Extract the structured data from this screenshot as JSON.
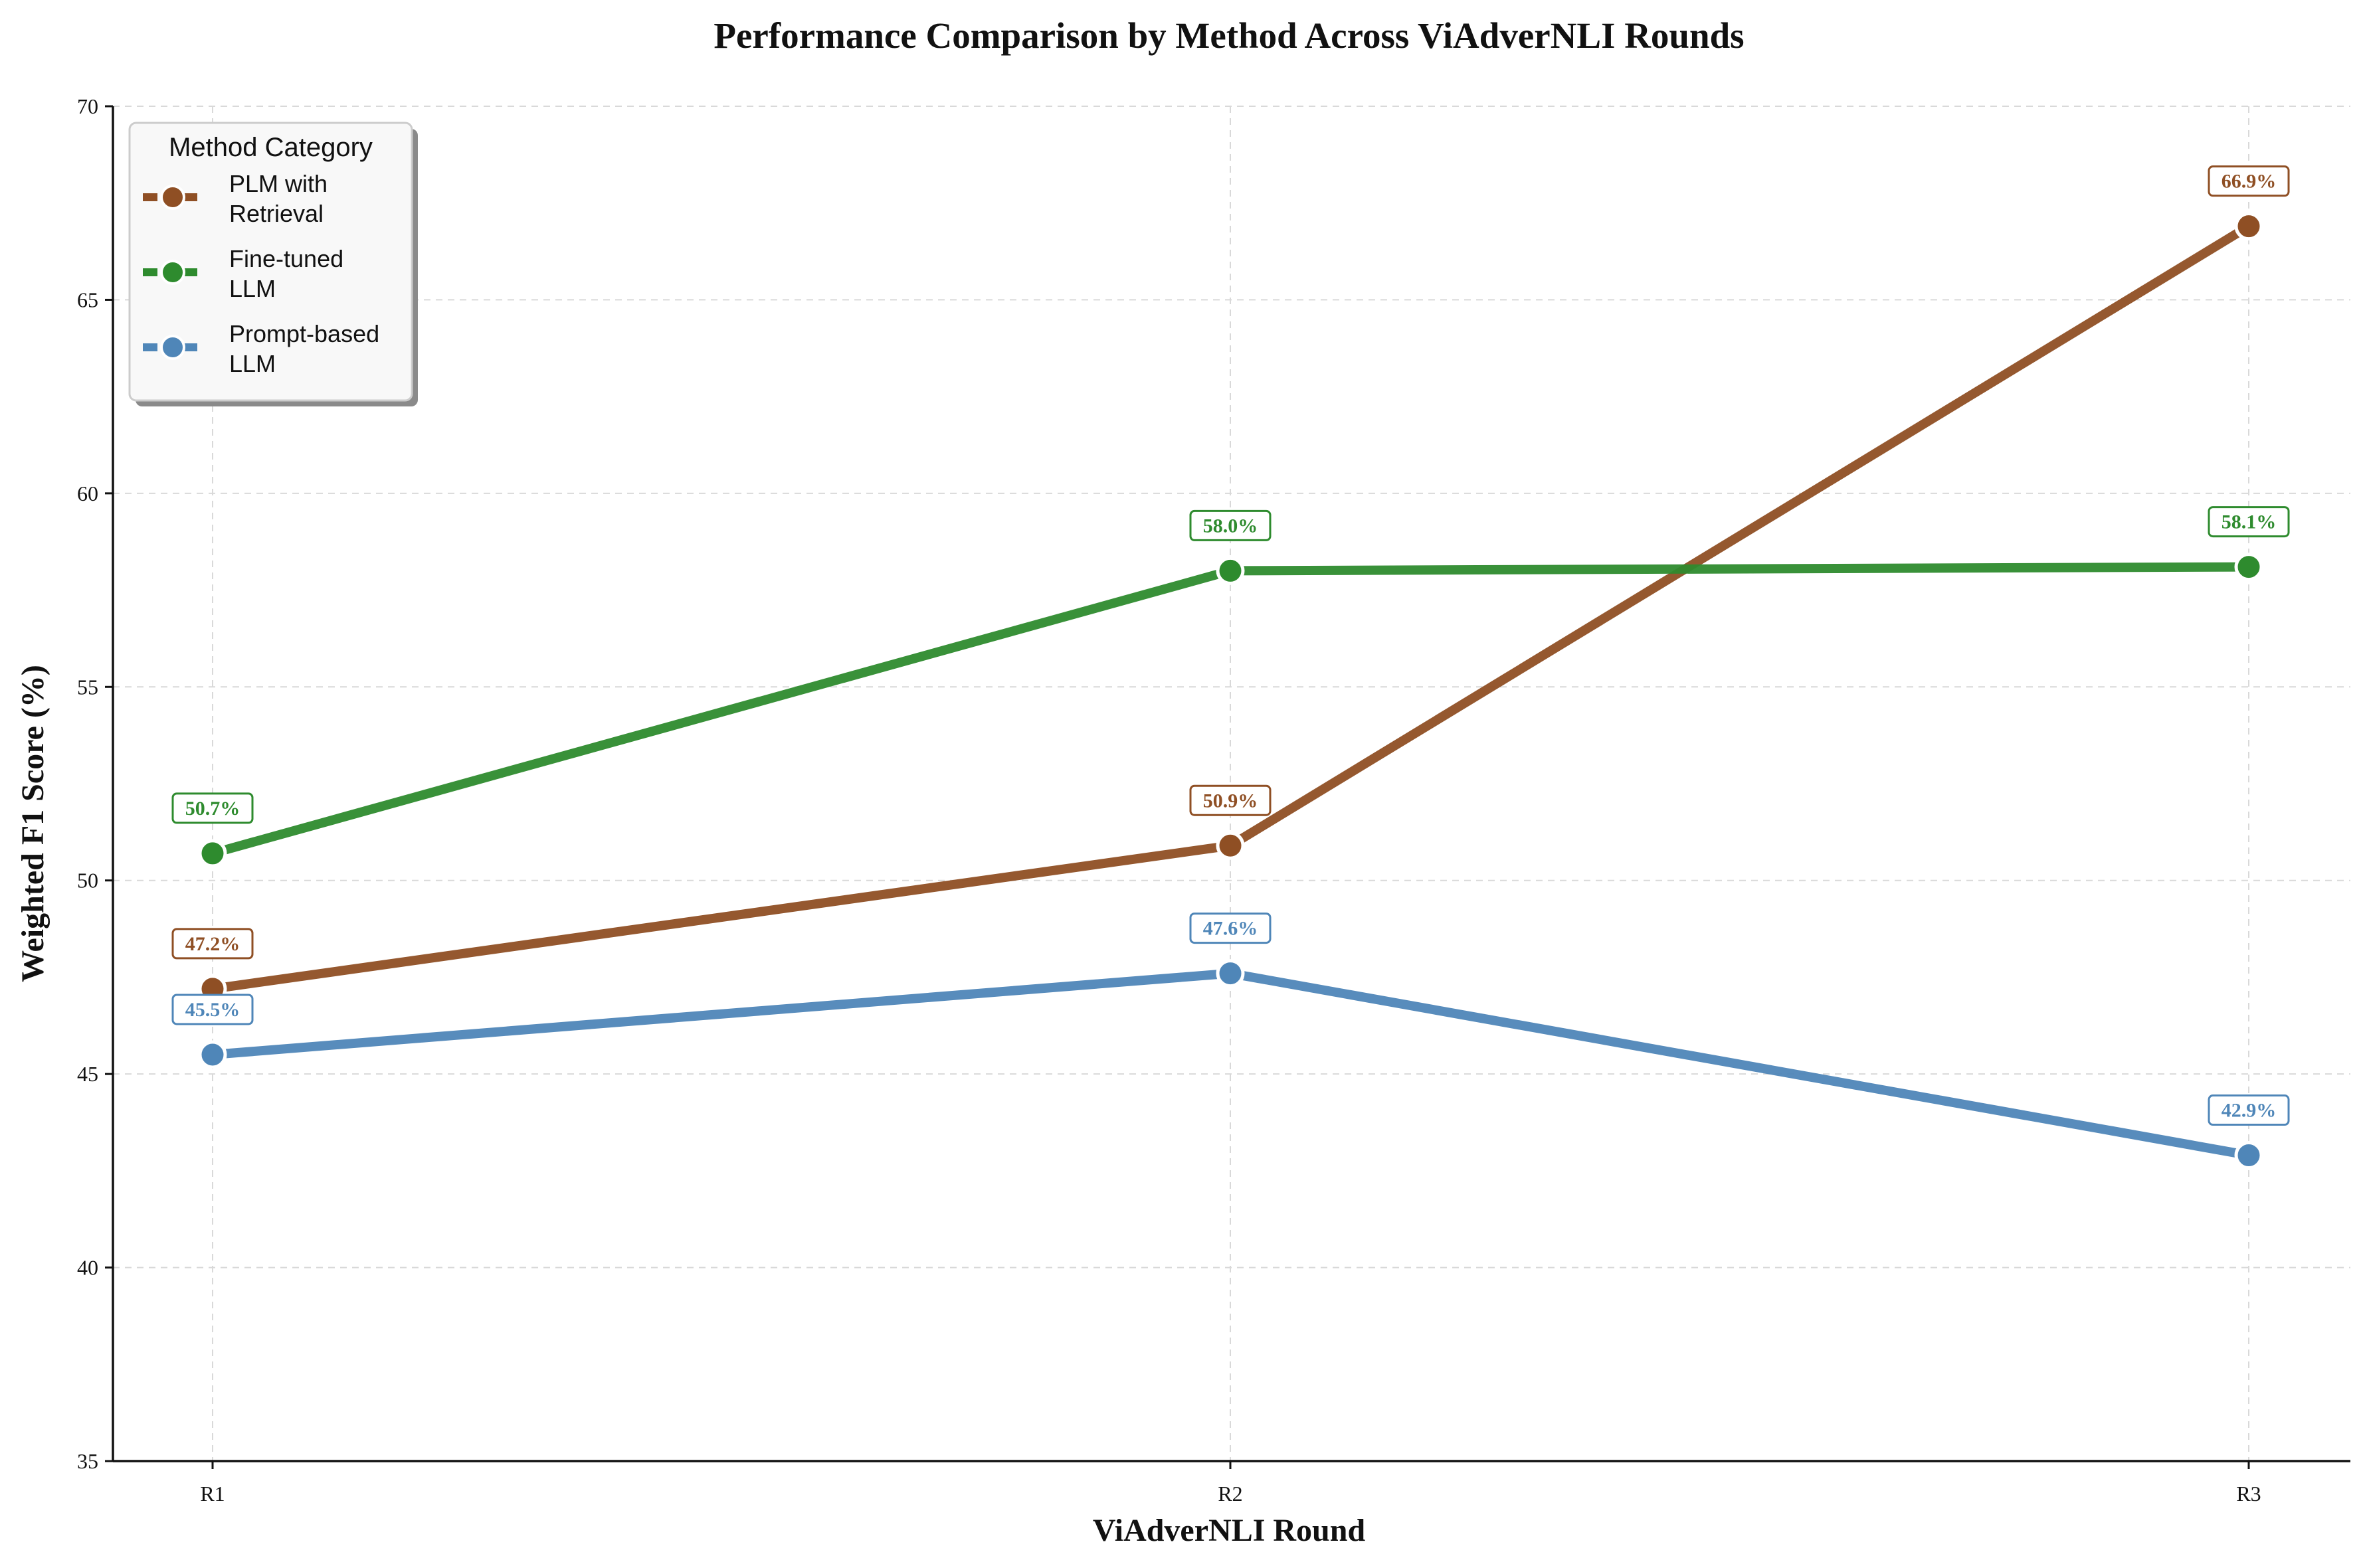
{
  "chart_data": {
    "type": "line",
    "title": "Performance Comparison by Method Across ViAdverNLI Rounds",
    "xlabel": "ViAdverNLI Round",
    "ylabel": "Weighted F1 Score (%)",
    "categories": [
      "R1",
      "R2",
      "R3"
    ],
    "ylim": [
      35,
      70
    ],
    "yticks": [
      35,
      40,
      45,
      50,
      55,
      60,
      65,
      70
    ],
    "grid": true,
    "legend": {
      "title": "Method Category",
      "placement": "top-left"
    },
    "series": [
      {
        "name": "PLM with Retrieval",
        "name_lines": [
          "PLM with",
          "Retrieval"
        ],
        "color": "#8f4f24",
        "values": [
          47.2,
          50.9,
          66.9
        ],
        "labels": [
          "47.2%",
          "50.9%",
          "66.9%"
        ]
      },
      {
        "name": "Fine-tuned LLM",
        "name_lines": [
          "Fine-tuned",
          "LLM"
        ],
        "color": "#2e8b2e",
        "values": [
          50.7,
          58.0,
          58.1
        ],
        "labels": [
          "50.7%",
          "58.0%",
          "58.1%"
        ]
      },
      {
        "name": "Prompt-based LLM",
        "name_lines": [
          "Prompt-based",
          "LLM"
        ],
        "color": "#4f86b8",
        "values": [
          45.5,
          47.6,
          42.9
        ],
        "labels": [
          "45.5%",
          "47.6%",
          "42.9%"
        ]
      }
    ]
  }
}
